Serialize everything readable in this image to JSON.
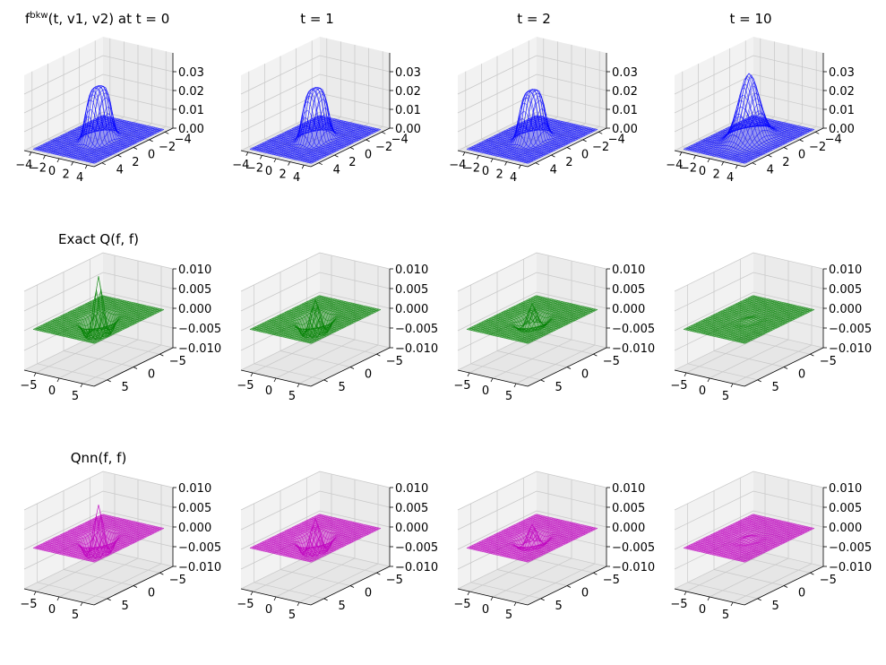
{
  "chart_data": {
    "type": "surface3d",
    "layout": {
      "rows": 3,
      "cols": 4
    },
    "colors": {
      "f": "#0000ff",
      "exact": "#008000",
      "nn": "#bf00bf",
      "pane_wall": "#f2f2f2",
      "pane_floor": "#e6e6e6",
      "grid": "#c8c8c8"
    },
    "title_row0_prefix": "f",
    "title_row0_sup": "bkw",
    "title_row0_args": "(t, v1, v2) at t = 0",
    "panels": [
      {
        "row": 0,
        "kind": "f",
        "color_key": "f",
        "time": 0,
        "title": "t = 0",
        "z_range": [
          0,
          0.04
        ],
        "x_ticks": [
          "−4",
          "−2",
          "0",
          "2",
          "4"
        ],
        "y_ticks": [
          "−4",
          "−2",
          "0",
          "2",
          "4"
        ],
        "z_ticks": [
          "0.00",
          "0.01",
          "0.02",
          "0.03"
        ],
        "series_peak": 0.028,
        "shape": "plateau"
      },
      {
        "row": 0,
        "kind": "f",
        "color_key": "f",
        "time": 1,
        "title": "t = 1",
        "z_range": [
          0,
          0.04
        ],
        "x_ticks": [
          "−4",
          "−2",
          "0",
          "2",
          "4"
        ],
        "y_ticks": [
          "−4",
          "−2",
          "0",
          "2",
          "4"
        ],
        "z_ticks": [
          "0.00",
          "0.01",
          "0.02",
          "0.03"
        ],
        "series_peak": 0.027,
        "shape": "plateau"
      },
      {
        "row": 0,
        "kind": "f",
        "color_key": "f",
        "time": 2,
        "title": "t = 2",
        "z_range": [
          0,
          0.04
        ],
        "x_ticks": [
          "−4",
          "−2",
          "0",
          "2",
          "4"
        ],
        "y_ticks": [
          "−4",
          "−2",
          "0",
          "2",
          "4"
        ],
        "z_ticks": [
          "0.00",
          "0.01",
          "0.02",
          "0.03"
        ],
        "series_peak": 0.026,
        "shape": "plateau"
      },
      {
        "row": 0,
        "kind": "f",
        "color_key": "f",
        "time": 10,
        "title": "t = 10",
        "z_range": [
          0,
          0.04
        ],
        "x_ticks": [
          "−4",
          "−2",
          "0",
          "2",
          "4"
        ],
        "y_ticks": [
          "−4",
          "−2",
          "0",
          "2",
          "4"
        ],
        "z_ticks": [
          "0.00",
          "0.01",
          "0.02",
          "0.03"
        ],
        "series_peak": 0.035,
        "shape": "gaussian"
      },
      {
        "row": 1,
        "kind": "q",
        "color_key": "exact",
        "time": 0,
        "title": "Exact Q(f, f)",
        "z_range": [
          -0.01,
          0.01
        ],
        "x_ticks": [
          "−5",
          "0",
          "5"
        ],
        "y_ticks": [
          "−5",
          "0",
          "5"
        ],
        "z_ticks": [
          "−0.010",
          "−0.005",
          "0.000",
          "0.005",
          "0.010"
        ],
        "center_spike": 0.011,
        "ring_dip": -0.004
      },
      {
        "row": 1,
        "kind": "q",
        "color_key": "exact",
        "time": 1,
        "title": "",
        "z_range": [
          -0.01,
          0.01
        ],
        "x_ticks": [
          "−5",
          "0",
          "5"
        ],
        "y_ticks": [
          "−5",
          "0",
          "5"
        ],
        "z_ticks": [
          "−0.010",
          "−0.005",
          "0.000",
          "0.005",
          "0.010"
        ],
        "center_spike": 0.005,
        "ring_dip": -0.0035
      },
      {
        "row": 1,
        "kind": "q",
        "color_key": "exact",
        "time": 2,
        "title": "",
        "z_range": [
          -0.01,
          0.01
        ],
        "x_ticks": [
          "−5",
          "0",
          "5"
        ],
        "y_ticks": [
          "−5",
          "0",
          "5"
        ],
        "z_ticks": [
          "−0.010",
          "−0.005",
          "0.000",
          "0.005",
          "0.010"
        ],
        "center_spike": 0.004,
        "ring_dip": -0.002
      },
      {
        "row": 1,
        "kind": "q",
        "color_key": "exact",
        "time": 10,
        "title": "",
        "z_range": [
          -0.01,
          0.01
        ],
        "x_ticks": [
          "−5",
          "0",
          "5"
        ],
        "y_ticks": [
          "−5",
          "0",
          "5"
        ],
        "z_ticks": [
          "−0.010",
          "−0.005",
          "0.000",
          "0.005",
          "0.010"
        ],
        "center_spike": 0.0003,
        "ring_dip": -0.0002
      },
      {
        "row": 2,
        "kind": "q",
        "color_key": "nn",
        "time": 0,
        "title": "Qnn(f, f)",
        "z_range": [
          -0.01,
          0.01
        ],
        "x_ticks": [
          "−5",
          "0",
          "5"
        ],
        "y_ticks": [
          "−5",
          "0",
          "5"
        ],
        "z_ticks": [
          "−0.010",
          "−0.005",
          "0.000",
          "0.005",
          "0.010"
        ],
        "center_spike": 0.0085,
        "ring_dip": -0.004
      },
      {
        "row": 2,
        "kind": "q",
        "color_key": "nn",
        "time": 1,
        "title": "",
        "z_range": [
          -0.01,
          0.01
        ],
        "x_ticks": [
          "−5",
          "0",
          "5"
        ],
        "y_ticks": [
          "−5",
          "0",
          "5"
        ],
        "z_ticks": [
          "−0.010",
          "−0.005",
          "0.000",
          "0.005",
          "0.010"
        ],
        "center_spike": 0.005,
        "ring_dip": -0.0035
      },
      {
        "row": 2,
        "kind": "q",
        "color_key": "nn",
        "time": 2,
        "title": "",
        "z_range": [
          -0.01,
          0.01
        ],
        "x_ticks": [
          "−5",
          "0",
          "5"
        ],
        "y_ticks": [
          "−5",
          "0",
          "5"
        ],
        "z_ticks": [
          "−0.010",
          "−0.005",
          "0.000",
          "0.005",
          "0.010"
        ],
        "center_spike": 0.0035,
        "ring_dip": -0.002
      },
      {
        "row": 2,
        "kind": "q",
        "color_key": "nn",
        "time": 10,
        "title": "",
        "z_range": [
          -0.01,
          0.01
        ],
        "x_ticks": [
          "−5",
          "0",
          "5"
        ],
        "y_ticks": [
          "−5",
          "0",
          "5"
        ],
        "z_ticks": [
          "−0.010",
          "−0.005",
          "0.000",
          "0.005",
          "0.010"
        ],
        "center_spike": 0.0004,
        "ring_dip": -0.0003
      }
    ]
  }
}
